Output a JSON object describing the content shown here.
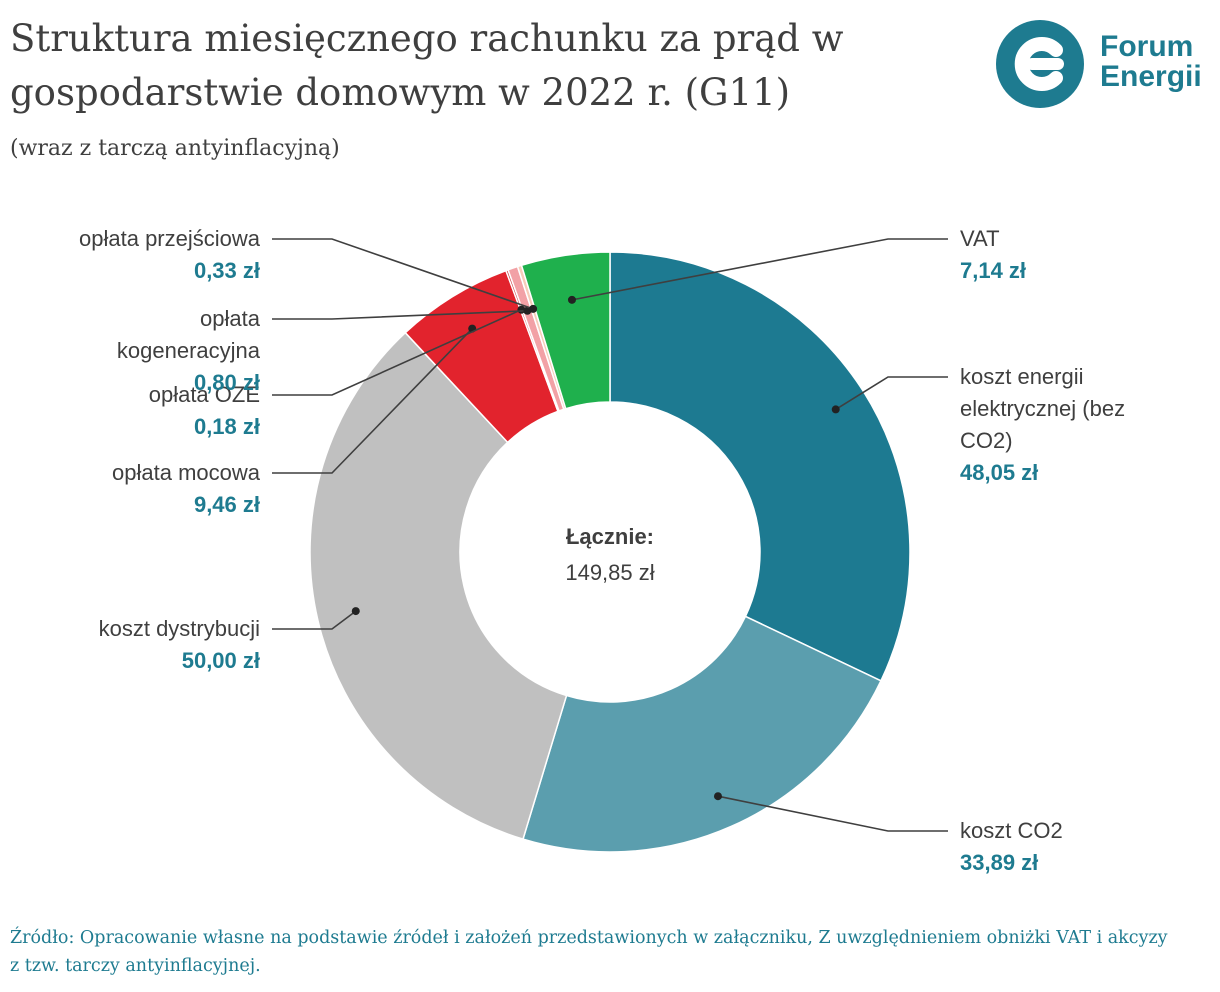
{
  "header": {
    "title": "Struktura miesięcznego rachunku za prąd w gospodarstwie domowym w 2022 r. (G11)",
    "subtitle": "(wraz z tarczą antyinflacyjną)"
  },
  "logo": {
    "line1": "Forum",
    "line2": "Energii",
    "color": "#1e7b90"
  },
  "chart_data": {
    "type": "pie",
    "variant": "donut",
    "center_label": "Łącznie:",
    "center_value": "149,85 zł",
    "total": 149.85,
    "slices": [
      {
        "label": "koszt energii elektrycznej (bez CO2)",
        "label_lines": [
          "koszt energii",
          "elektrycznej (bez",
          "CO2)"
        ],
        "value": 48.05,
        "value_label": "48,05 zł",
        "color": "#1d7a91",
        "side": "right"
      },
      {
        "label": "koszt CO2",
        "label_lines": [
          "koszt CO2"
        ],
        "value": 33.89,
        "value_label": "33,89 zł",
        "color": "#5b9eae",
        "side": "right"
      },
      {
        "label": "koszt dystrybucji",
        "label_lines": [
          "koszt dystrybucji"
        ],
        "value": 50.0,
        "value_label": "50,00 zł",
        "color": "#c0c0c0",
        "side": "left"
      },
      {
        "label": "opłata mocowa",
        "label_lines": [
          "opłata mocowa"
        ],
        "value": 9.46,
        "value_label": "9,46 zł",
        "color": "#e2232d",
        "side": "left"
      },
      {
        "label": "opłata OZE",
        "label_lines": [
          "opłata OZE"
        ],
        "value": 0.18,
        "value_label": "0,18 zł",
        "color": "#c9353c",
        "side": "left"
      },
      {
        "label": "opłata kogeneracyjna",
        "label_lines": [
          "opłata",
          "kogeneracyjna"
        ],
        "value": 0.8,
        "value_label": "0,80 zł",
        "color": "#f2a1a6",
        "side": "left"
      },
      {
        "label": "opłata przejściowa",
        "label_lines": [
          "opłata przejściowa"
        ],
        "value": 0.33,
        "value_label": "0,33 zł",
        "color": "#f6ccb9",
        "side": "left"
      },
      {
        "label": "VAT",
        "label_lines": [
          "VAT"
        ],
        "value": 7.14,
        "value_label": "7,14 zł",
        "color": "#1fb04d",
        "side": "right"
      }
    ]
  },
  "footer": {
    "source": "Źródło: Opracowanie własne na podstawie źródeł i założeń przedstawionych w załączniku, Z uwzględnieniem obniżki VAT i akcyzy z tzw. tarczy antyinflacyjnej."
  }
}
